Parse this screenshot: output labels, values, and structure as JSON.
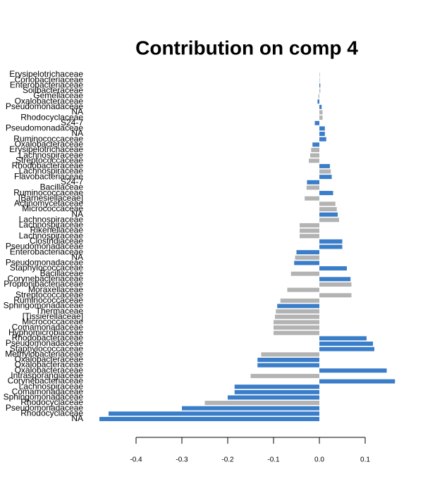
{
  "chart_data": {
    "type": "barh",
    "title": "Contribution on comp 4",
    "categories": [
      "Erysipelotrichaceae",
      "Coriobacteriaceae",
      "Enterobacteriaceae",
      "Soilbacteraceae",
      "Gemellaceae",
      "Oxalobacteraceae",
      "Pseudomonadaceae",
      "NA",
      "Rhodocyclaceae",
      "S24-7",
      "Pseudomonadaceae",
      "NA",
      "Ruminococcaceae",
      "Oxalobacteraceae",
      "Erysipelotrichaceae",
      "Lachnospiraceae",
      "Streptococcaceae",
      "Rhodobacteraceae",
      "Lachnospiraceae",
      "Flavobacteriaceae",
      "S24-7",
      "Bacillaceae",
      "Ruminococcaceae",
      "[Barnesiellaceae]",
      "Actinomycetaceae",
      "Micrococcaceae",
      "NA",
      "Lachnospiraceae",
      "Lachnospiraceae",
      "Rikenellaceae",
      "Lachnospiraceae",
      "Clostridiaceae",
      "Pseudomonadaceae",
      "Enterobacteriaceae",
      "NA",
      "Pseudomonadaceae",
      "Staphylococcaceae",
      "Bacillaceae",
      "Corynebacteriaceae",
      "Propionibacteriaceae",
      "Moraxellaceae",
      "Streptococcaceae",
      "Ruminococcaceae",
      "Sphingomonadaceae",
      "Thermaceae",
      "[Tissierellaceae]",
      "Micrococcaceae",
      "Comamonadaceae",
      "Hyphomicrobiaceae",
      "Rhodobacteraceae",
      "Pseudomonadaceae",
      "Staphylococcaceae",
      "Methylobacteriaceae",
      "Oxalobacteraceae",
      "Oxalobacteraceae",
      "Oxalobacteraceae",
      "Intrasporangiaceae",
      "Corynebacteriaceae",
      "Lachnospiraceae",
      "Comamonadaceae",
      "Sphingomonadaceae",
      "Rhodocyclaceae",
      "Pseudomonadaceae",
      "Rhodocyclaceae",
      "NA"
    ],
    "values": [
      0.001,
      0.001,
      0.002,
      0.002,
      -0.002,
      -0.004,
      0.005,
      0.007,
      0.007,
      -0.01,
      0.012,
      0.012,
      0.015,
      -0.015,
      -0.018,
      -0.02,
      -0.023,
      0.023,
      0.025,
      0.027,
      -0.027,
      -0.028,
      0.03,
      -0.032,
      0.035,
      0.038,
      0.04,
      0.043,
      -0.043,
      -0.043,
      -0.043,
      0.05,
      0.05,
      -0.05,
      -0.053,
      -0.055,
      0.06,
      -0.062,
      0.068,
      0.07,
      -0.07,
      0.07,
      -0.085,
      -0.092,
      -0.095,
      -0.097,
      -0.1,
      -0.1,
      -0.1,
      0.103,
      0.117,
      0.12,
      -0.127,
      -0.135,
      -0.135,
      0.147,
      -0.15,
      0.165,
      -0.185,
      -0.185,
      -0.2,
      -0.25,
      -0.3,
      -0.46,
      -0.48
    ],
    "colors": [
      "#b3b3b3",
      "#b3b3b3",
      "#3a7dc8",
      "#b3b3b3",
      "#b3b3b3",
      "#3a7dc8",
      "#3a7dc8",
      "#b3b3b3",
      "#b3b3b3",
      "#3a7dc8",
      "#3a7dc8",
      "#3a7dc8",
      "#3a7dc8",
      "#3a7dc8",
      "#b3b3b3",
      "#b3b3b3",
      "#b3b3b3",
      "#3a7dc8",
      "#b3b3b3",
      "#3a7dc8",
      "#3a7dc8",
      "#b3b3b3",
      "#3a7dc8",
      "#b3b3b3",
      "#b3b3b3",
      "#b3b3b3",
      "#3a7dc8",
      "#b3b3b3",
      "#b3b3b3",
      "#b3b3b3",
      "#b3b3b3",
      "#3a7dc8",
      "#3a7dc8",
      "#3a7dc8",
      "#b3b3b3",
      "#3a7dc8",
      "#3a7dc8",
      "#b3b3b3",
      "#3a7dc8",
      "#b3b3b3",
      "#b3b3b3",
      "#b3b3b3",
      "#b3b3b3",
      "#3a7dc8",
      "#b3b3b3",
      "#b3b3b3",
      "#b3b3b3",
      "#b3b3b3",
      "#b3b3b3",
      "#3a7dc8",
      "#3a7dc8",
      "#3a7dc8",
      "#b3b3b3",
      "#3a7dc8",
      "#3a7dc8",
      "#3a7dc8",
      "#b3b3b3",
      "#3a7dc8",
      "#3a7dc8",
      "#3a7dc8",
      "#3a7dc8",
      "#b3b3b3",
      "#3a7dc8",
      "#3a7dc8",
      "#3a7dc8"
    ],
    "xlim": [
      -0.49,
      0.17
    ],
    "xticks": [
      -0.4,
      -0.3,
      -0.2,
      -0.1,
      {
        "value": 0,
        "label": "0.0"
      },
      0.1
    ]
  }
}
